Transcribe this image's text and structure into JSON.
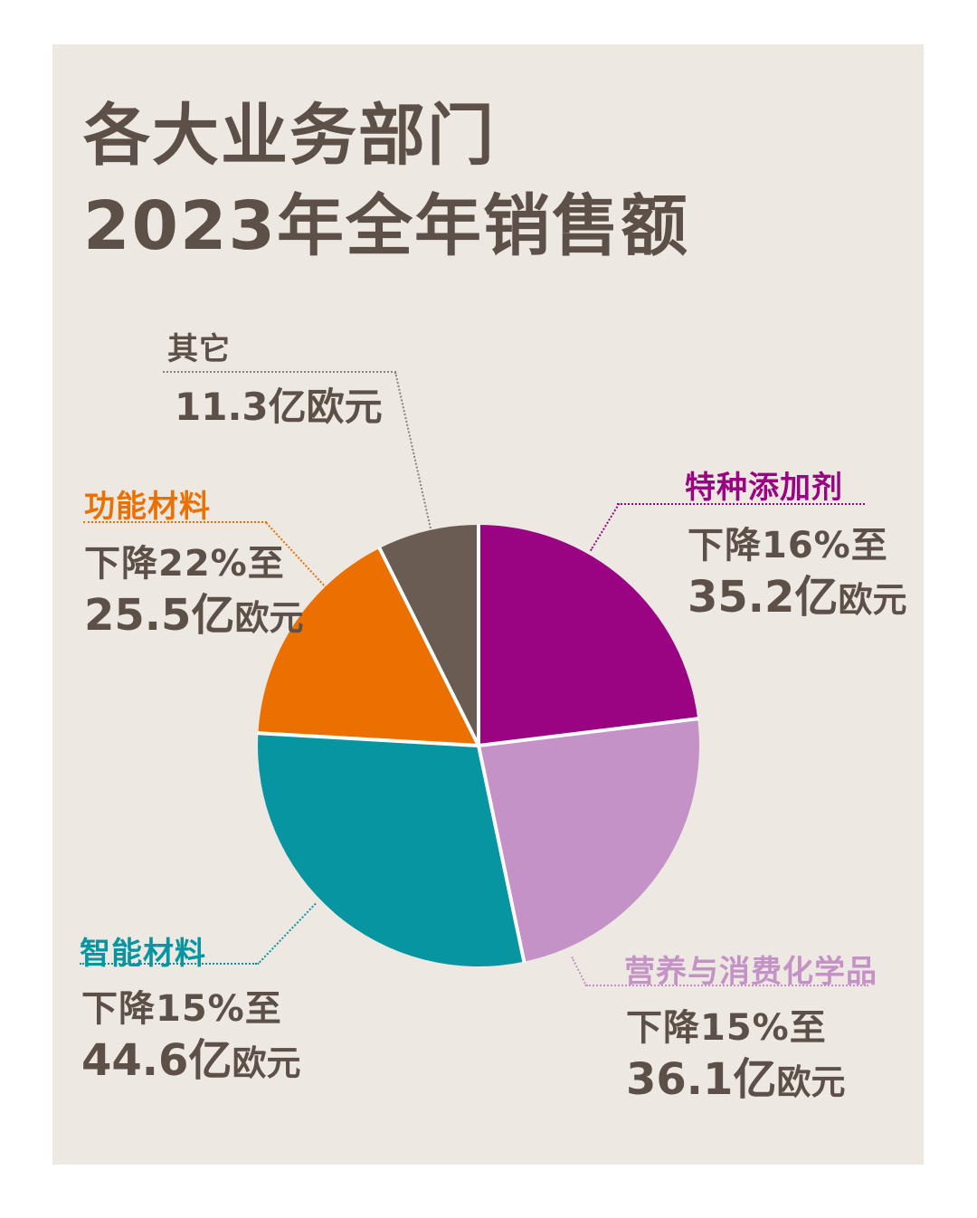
{
  "page": {
    "background": "#FFFFFF",
    "panel_background": "#EDE9E2",
    "text_color": "#5C5048",
    "divider_color": "#FFFFFF"
  },
  "title": {
    "line1": "各大业务部门",
    "line2": "2023年全年销售额"
  },
  "chart_data": {
    "type": "pie",
    "title": "各大业务部门2023年全年销售额",
    "unit": "亿欧元",
    "total_value": 152.7,
    "start_angle_deg": -90,
    "direction": "clockwise",
    "legend_position": "around",
    "segments": [
      {
        "label": "特种添加剂",
        "value": 35.2,
        "change_text": "下降16%至",
        "value_big": "35.2亿",
        "value_small": "欧元",
        "color": "#9A0483",
        "label_color": "#9A0483",
        "leader_color": "#9A0483"
      },
      {
        "label": "营养与消费化学品",
        "value": 36.1,
        "change_text": "下降15%至",
        "value_big": "36.1亿",
        "value_small": "欧元",
        "color": "#C492C6",
        "label_color": "#C492C6",
        "leader_color": "#C492C6"
      },
      {
        "label": "智能材料",
        "value": 44.6,
        "change_text": "下降15%至",
        "value_big": "44.6亿",
        "value_small": "欧元",
        "color": "#0895A2",
        "label_color": "#0895A2",
        "leader_color": "#0895A2"
      },
      {
        "label": "功能材料",
        "value": 25.5,
        "change_text": "下降22%至",
        "value_big": "25.5亿",
        "value_small": "欧元",
        "color": "#EC7000",
        "label_color": "#EC7000",
        "leader_color": "#EC7000"
      },
      {
        "label": "其它",
        "value": 11.3,
        "change_text": "",
        "value_text": "11.3亿欧元",
        "color": "#6B5C53",
        "label_color": "#5C5048",
        "leader_color": "#8D8078"
      }
    ]
  }
}
